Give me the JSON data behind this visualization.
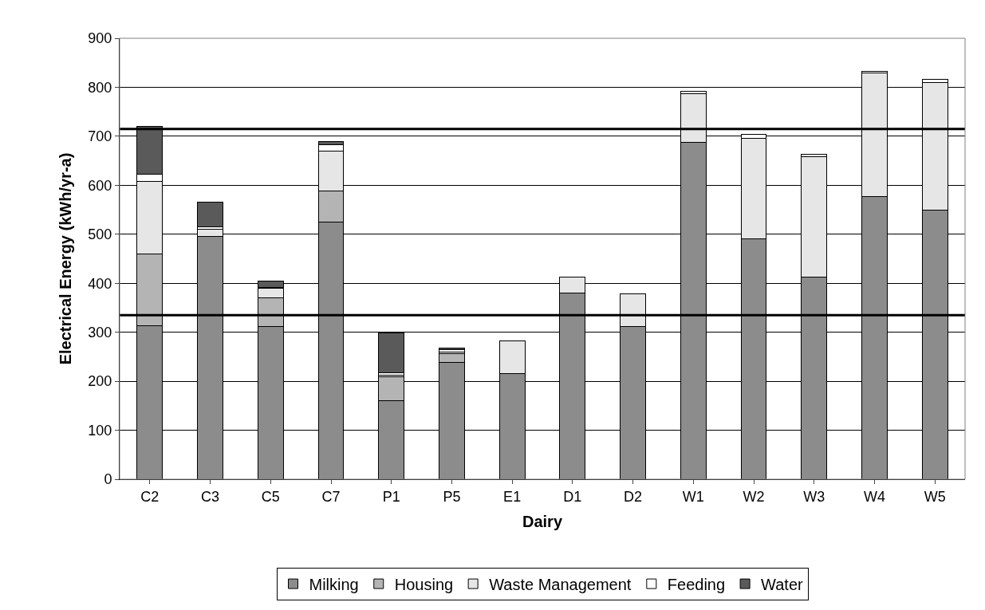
{
  "chart_data": {
    "type": "bar",
    "stacked": true,
    "xlabel": "Dairy",
    "ylabel": "Electrical Energy (kWh/yr-a)",
    "categories": [
      "C2",
      "C3",
      "C5",
      "C7",
      "P1",
      "P5",
      "E1",
      "D1",
      "D2",
      "W1",
      "W2",
      "W3",
      "W4",
      "W5"
    ],
    "series": [
      {
        "name": "Milking",
        "color": "#8c8c8c",
        "values": [
          313,
          495,
          312,
          525,
          161,
          239,
          216,
          380,
          312,
          687,
          491,
          412,
          577,
          549
        ]
      },
      {
        "name": "Housing",
        "color": "#b4b4b4",
        "values": [
          147,
          0,
          59,
          63,
          48,
          17,
          0,
          0,
          0,
          0,
          0,
          0,
          0,
          0
        ]
      },
      {
        "name": "Waste Management",
        "color": "#e6e6e6",
        "values": [
          148,
          16,
          19,
          82,
          4,
          4,
          66,
          33,
          67,
          100,
          204,
          246,
          252,
          261
        ]
      },
      {
        "name": "Feeding",
        "color": "#ffffff",
        "values": [
          15,
          4,
          2,
          13,
          4,
          4,
          0,
          0,
          0,
          5,
          9,
          5,
          4,
          7
        ]
      },
      {
        "name": "Water",
        "color": "#5a5a5a",
        "values": [
          97,
          51,
          13,
          7,
          81,
          4,
          0,
          0,
          0,
          0,
          0,
          0,
          0,
          0
        ]
      }
    ],
    "ylim": [
      0,
      900
    ],
    "yticks": [
      0,
      100,
      200,
      300,
      400,
      500,
      600,
      700,
      800,
      900
    ],
    "grid": "y",
    "legend": "bottom",
    "ref_lines": [
      {
        "axis": "y",
        "value": 335,
        "color": "#000000"
      },
      {
        "axis": "y",
        "value": 715,
        "color": "#000000"
      }
    ]
  }
}
